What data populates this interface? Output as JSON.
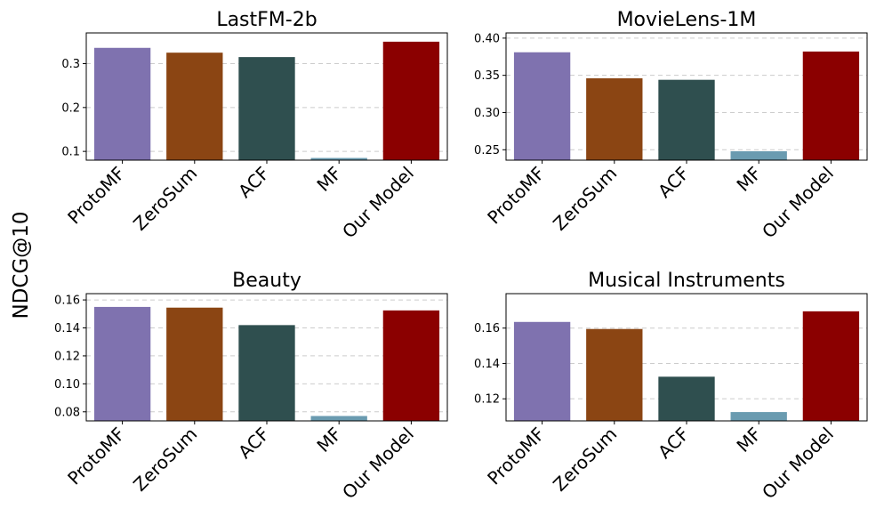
{
  "figure": {
    "ylabel": "NDCG@10"
  },
  "colors": {
    "ProtoMF": "#7F72AF",
    "ZeroSum": "#8B4513",
    "ACF": "#2F4F4F",
    "MF": "#6A9BB0",
    "Our Model": "#8B0000"
  },
  "chart_data": [
    {
      "type": "bar",
      "title": "LastFM-2b",
      "categories": [
        "ProtoMF",
        "ZeroSum",
        "ACF",
        "MF",
        "Our Model"
      ],
      "values": [
        0.336,
        0.325,
        0.315,
        0.085,
        0.35
      ],
      "ylim": [
        0.08,
        0.37
      ],
      "yticks": [
        0.1,
        0.2,
        0.3
      ],
      "ytick_labels": [
        "0.1",
        "0.2",
        "0.3"
      ],
      "grid": true
    },
    {
      "type": "bar",
      "title": "MovieLens-1M",
      "categories": [
        "ProtoMF",
        "ZeroSum",
        "ACF",
        "MF",
        "Our Model"
      ],
      "values": [
        0.381,
        0.346,
        0.344,
        0.248,
        0.382
      ],
      "ylim": [
        0.236,
        0.407
      ],
      "yticks": [
        0.25,
        0.3,
        0.35,
        0.4
      ],
      "ytick_labels": [
        "0.25",
        "0.30",
        "0.35",
        "0.40"
      ],
      "grid": true
    },
    {
      "type": "bar",
      "title": "Beauty",
      "categories": [
        "ProtoMF",
        "ZeroSum",
        "ACF",
        "MF",
        "Our Model"
      ],
      "values": [
        0.155,
        0.1545,
        0.142,
        0.077,
        0.1525
      ],
      "ylim": [
        0.0735,
        0.1645
      ],
      "yticks": [
        0.08,
        0.1,
        0.12,
        0.14,
        0.16
      ],
      "ytick_labels": [
        "0.08",
        "0.10",
        "0.12",
        "0.14",
        "0.16"
      ],
      "grid": true
    },
    {
      "type": "bar",
      "title": "Musical Instruments",
      "categories": [
        "ProtoMF",
        "ZeroSum",
        "ACF",
        "MF",
        "Our Model"
      ],
      "values": [
        0.1635,
        0.1595,
        0.1325,
        0.1125,
        0.1695
      ],
      "ylim": [
        0.1075,
        0.1795
      ],
      "yticks": [
        0.12,
        0.14,
        0.16
      ],
      "ytick_labels": [
        "0.12",
        "0.14",
        "0.16"
      ],
      "grid": true
    }
  ]
}
